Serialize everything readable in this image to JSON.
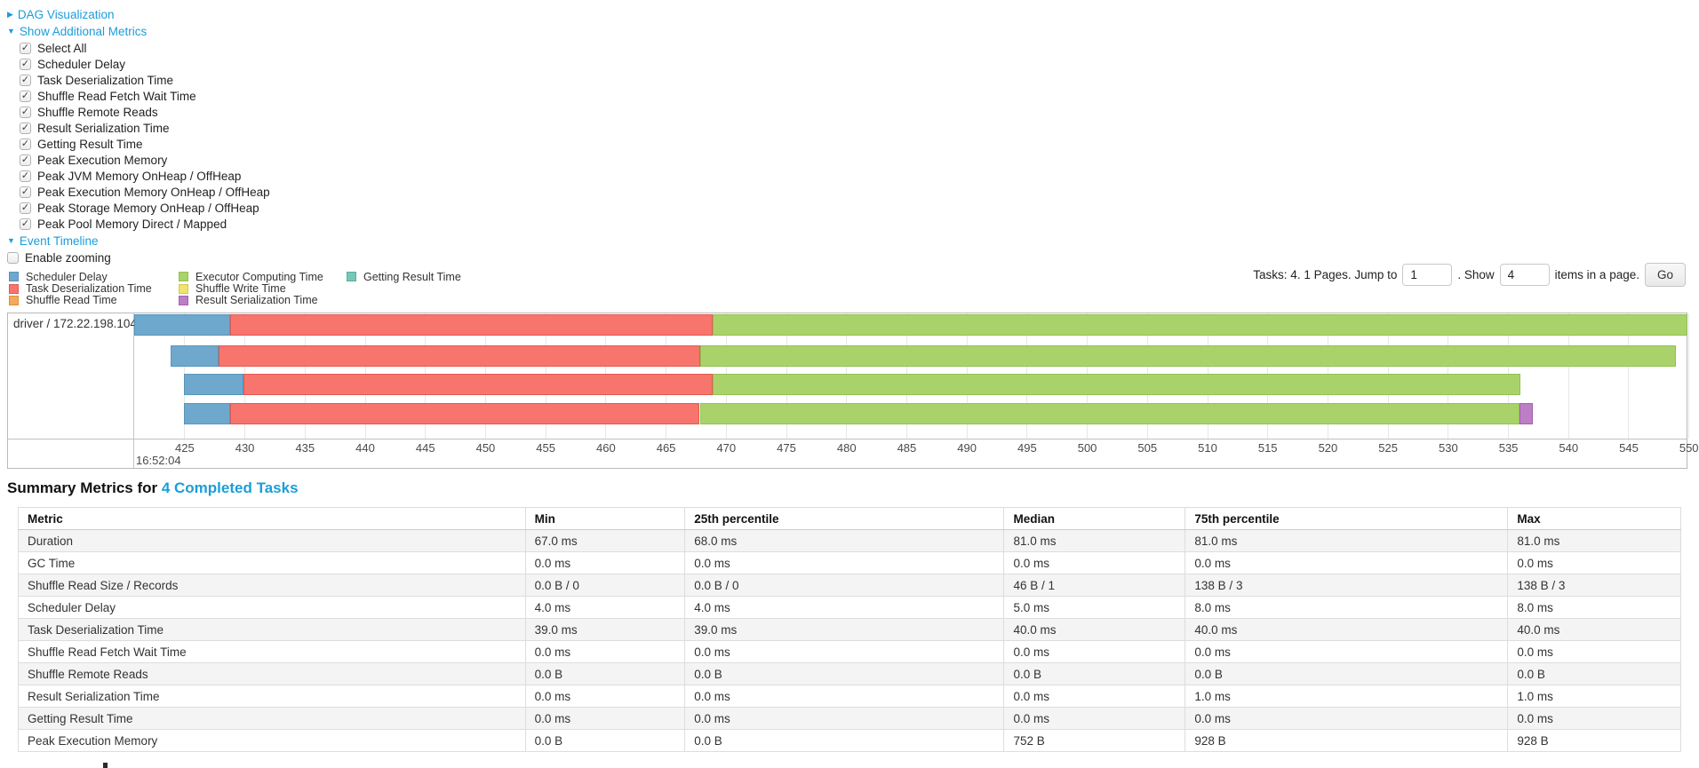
{
  "controls": {
    "dag_label": "DAG Visualization",
    "metrics_label": "Show Additional Metrics",
    "checkboxes": [
      {
        "label": "Select All",
        "checked": true
      },
      {
        "label": "Scheduler Delay",
        "checked": true
      },
      {
        "label": "Task Deserialization Time",
        "checked": true
      },
      {
        "label": "Shuffle Read Fetch Wait Time",
        "checked": true
      },
      {
        "label": "Shuffle Remote Reads",
        "checked": true
      },
      {
        "label": "Result Serialization Time",
        "checked": true
      },
      {
        "label": "Getting Result Time",
        "checked": true
      },
      {
        "label": "Peak Execution Memory",
        "checked": true
      },
      {
        "label": "Peak JVM Memory OnHeap / OffHeap",
        "checked": true
      },
      {
        "label": "Peak Execution Memory OnHeap / OffHeap",
        "checked": true
      },
      {
        "label": "Peak Storage Memory OnHeap / OffHeap",
        "checked": true
      },
      {
        "label": "Peak Pool Memory Direct / Mapped",
        "checked": true
      }
    ],
    "event_timeline_label": "Event Timeline",
    "enable_zooming": {
      "label": "Enable zooming",
      "checked": false
    }
  },
  "legend": {
    "columns": [
      [
        {
          "type": "scheduler_delay",
          "label": "Scheduler Delay"
        },
        {
          "type": "task_deserialization",
          "label": "Task Deserialization Time"
        },
        {
          "type": "shuffle_read",
          "label": "Shuffle Read Time"
        }
      ],
      [
        {
          "type": "executor_computing",
          "label": "Executor Computing Time"
        },
        {
          "type": "shuffle_write",
          "label": "Shuffle Write Time"
        },
        {
          "type": "result_serialization",
          "label": "Result Serialization Time"
        }
      ],
      [
        {
          "type": "getting_result",
          "label": "Getting Result Time"
        }
      ]
    ]
  },
  "colors": {
    "scheduler_delay": {
      "bg": "#6EA8CD",
      "border": "#5795BD"
    },
    "task_deserialization": {
      "bg": "#F7756C",
      "border": "#E05A55"
    },
    "shuffle_read": {
      "bg": "#F5A75A",
      "border": "#DD8E3E"
    },
    "executor_computing": {
      "bg": "#A9D36A",
      "border": "#92C250"
    },
    "shuffle_write": {
      "bg": "#EFE26F",
      "border": "#D6C84F"
    },
    "result_serialization": {
      "bg": "#BC7FC3",
      "border": "#A55FB0"
    },
    "getting_result": {
      "bg": "#76C7B7",
      "border": "#58B09E"
    },
    "link": "#1b9dd9"
  },
  "pagination": {
    "prefix": "Tasks: 4. 1 Pages. Jump to",
    "jump_value": "1",
    "show_label": ". Show",
    "show_value": "4",
    "suffix": "items in a page.",
    "go_label": "Go"
  },
  "timeline": {
    "group_label": "driver / 172.22.198.104",
    "axis": {
      "domain_start": 420.8,
      "domain_end": 549.8,
      "tick_start": 425,
      "tick_end": 550,
      "tick_step": 5,
      "major_label": "16:52:04"
    },
    "tasks": [
      {
        "segments": [
          {
            "type": "scheduler_delay",
            "start": 420.8,
            "end": 428.8
          },
          {
            "type": "task_deserialization",
            "start": 428.8,
            "end": 468.9
          },
          {
            "type": "executor_computing",
            "start": 468.9,
            "end": 549.9
          }
        ]
      },
      {
        "segments": [
          {
            "type": "scheduler_delay",
            "start": 423.8,
            "end": 427.8
          },
          {
            "type": "task_deserialization",
            "start": 427.8,
            "end": 467.8
          },
          {
            "type": "executor_computing",
            "start": 467.8,
            "end": 548.9
          }
        ]
      },
      {
        "segments": [
          {
            "type": "scheduler_delay",
            "start": 424.9,
            "end": 429.9
          },
          {
            "type": "task_deserialization",
            "start": 429.9,
            "end": 468.9
          },
          {
            "type": "executor_computing",
            "start": 468.9,
            "end": 536.0
          }
        ]
      },
      {
        "segments": [
          {
            "type": "scheduler_delay",
            "start": 424.9,
            "end": 428.8
          },
          {
            "type": "task_deserialization",
            "start": 428.8,
            "end": 467.8
          },
          {
            "type": "executor_computing",
            "start": 467.8,
            "end": 535.9
          },
          {
            "type": "result_serialization",
            "start": 535.9,
            "end": 537.0
          }
        ]
      }
    ]
  },
  "summary": {
    "title_prefix": "Summary Metrics for ",
    "title_link": "4 Completed Tasks",
    "headers": [
      "Metric",
      "Min",
      "25th percentile",
      "Median",
      "75th percentile",
      "Max"
    ],
    "rows": [
      [
        "Duration",
        "67.0 ms",
        "68.0 ms",
        "81.0 ms",
        "81.0 ms",
        "81.0 ms"
      ],
      [
        "GC Time",
        "0.0 ms",
        "0.0 ms",
        "0.0 ms",
        "0.0 ms",
        "0.0 ms"
      ],
      [
        "Shuffle Read Size / Records",
        "0.0 B / 0",
        "0.0 B / 0",
        "46 B / 1",
        "138 B / 3",
        "138 B / 3"
      ],
      [
        "Scheduler Delay",
        "4.0 ms",
        "4.0 ms",
        "5.0 ms",
        "8.0 ms",
        "8.0 ms"
      ],
      [
        "Task Deserialization Time",
        "39.0 ms",
        "39.0 ms",
        "40.0 ms",
        "40.0 ms",
        "40.0 ms"
      ],
      [
        "Shuffle Read Fetch Wait Time",
        "0.0 ms",
        "0.0 ms",
        "0.0 ms",
        "0.0 ms",
        "0.0 ms"
      ],
      [
        "Shuffle Remote Reads",
        "0.0 B",
        "0.0 B",
        "0.0 B",
        "0.0 B",
        "0.0 B"
      ],
      [
        "Result Serialization Time",
        "0.0 ms",
        "0.0 ms",
        "0.0 ms",
        "1.0 ms",
        "1.0 ms"
      ],
      [
        "Getting Result Time",
        "0.0 ms",
        "0.0 ms",
        "0.0 ms",
        "0.0 ms",
        "0.0 ms"
      ],
      [
        "Peak Execution Memory",
        "0.0 B",
        "0.0 B",
        "752 B",
        "928 B",
        "928 B"
      ]
    ]
  }
}
